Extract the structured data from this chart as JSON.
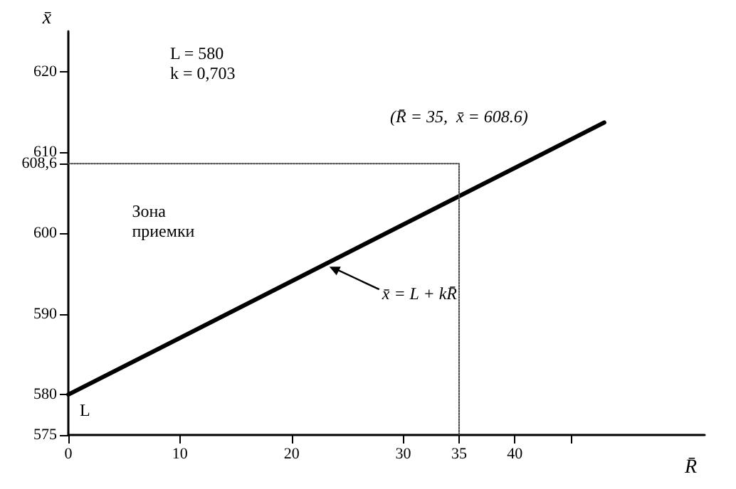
{
  "chart_data": {
    "type": "line",
    "xlabel": "R̄",
    "ylabel": "x̄",
    "xlim": [
      0,
      57
    ],
    "ylim": [
      575,
      625
    ],
    "xticks": [
      0,
      10,
      20,
      30,
      35,
      40,
      {
        "value": 45,
        "label": null
      }
    ],
    "yticks": [
      575,
      580,
      590,
      600,
      {
        "value": 608.6,
        "label": "608,6"
      },
      610,
      620
    ],
    "series": [
      {
        "x": [
          0,
          48
        ],
        "values": [
          580,
          613.7
        ],
        "color": "#000000",
        "line_style": "solid"
      },
      {
        "x": [
          0,
          35,
          35
        ],
        "values": [
          608.6,
          608.6,
          575
        ],
        "color": "#444444",
        "line_style": "dotted"
      }
    ],
    "annotations": [
      "L = 580\nk = 0,703",
      {
        "text": "(R̄ = 35,  x̄ = 608.6)",
        "x": 35,
        "y": 608.6
      },
      "Зона\nприемки",
      {
        "text": "x̄ = L + kR̄",
        "x": 23,
        "y": 596.2
      },
      {
        "text": "L",
        "x": 0,
        "y": 580
      }
    ],
    "grid": false,
    "marker": "none"
  }
}
